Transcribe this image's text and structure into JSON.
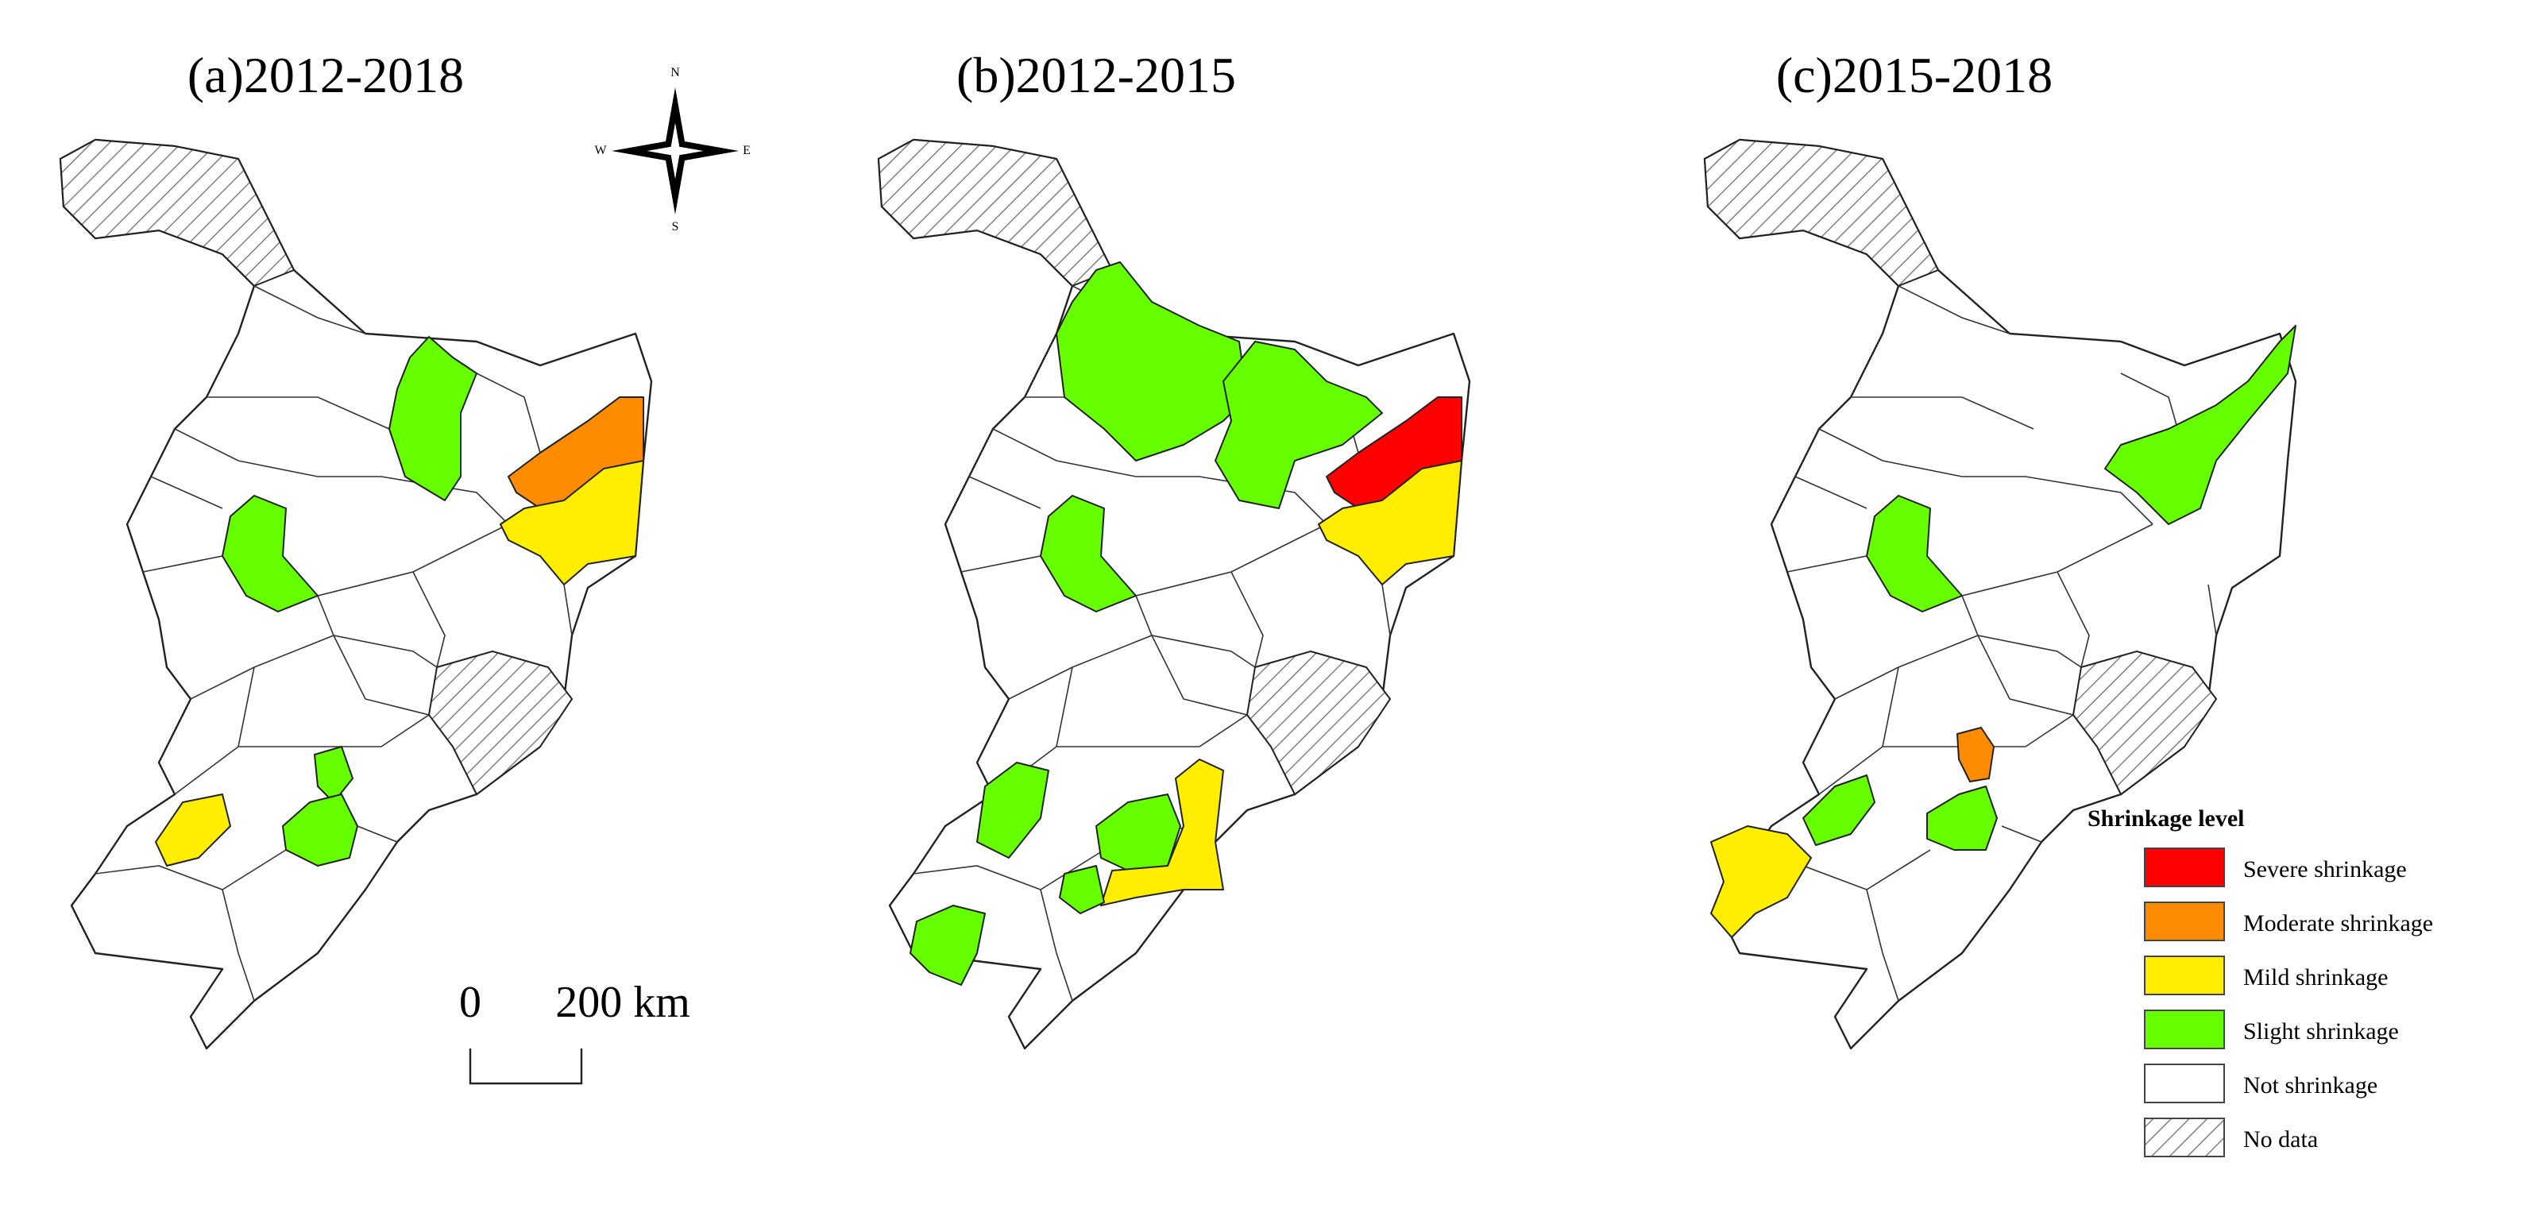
{
  "panels": [
    {
      "title": "(a)2012-2018"
    },
    {
      "title": "(b)2012-2015"
    },
    {
      "title": "(c)2015-2018"
    }
  ],
  "compass": {
    "n": "N",
    "s": "S",
    "w": "W",
    "e": "E"
  },
  "scale_bar": {
    "start": "0",
    "end": "200 km"
  },
  "legend": {
    "title": "Shrinkage level",
    "items": [
      {
        "label": "Severe shrinkage",
        "color": "#ff0000"
      },
      {
        "label": "Moderate shrinkage",
        "color": "#ff8c00"
      },
      {
        "label": "Mild shrinkage",
        "color": "#ffee00"
      },
      {
        "label": "Slight shrinkage",
        "color": "#66ff00"
      },
      {
        "label": "Not shrinkage",
        "color": "#ffffff"
      },
      {
        "label": "No data",
        "color": "hatch"
      }
    ]
  }
}
